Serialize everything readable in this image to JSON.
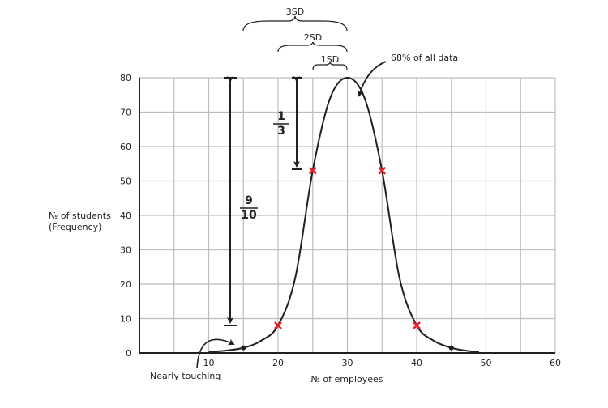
{
  "chart_data": {
    "type": "line",
    "xlabel": "№ of employees",
    "ylabel": [
      "№ of students",
      "(Frequency)"
    ],
    "xlim": [
      0,
      60
    ],
    "ylim": [
      0,
      80
    ],
    "x_ticks": [
      10,
      20,
      30,
      40,
      50,
      60
    ],
    "y_ticks": [
      0,
      10,
      20,
      30,
      40,
      50,
      60,
      70,
      80
    ],
    "grid": true,
    "curve": {
      "x": [
        10,
        12.5,
        15,
        17.5,
        20,
        22.5,
        25,
        27.5,
        30,
        32.5,
        35,
        37.5,
        40,
        42.5,
        45,
        47,
        49
      ],
      "y": [
        0.3,
        0.7,
        1.5,
        3.5,
        8,
        22,
        53,
        74,
        80,
        74,
        53,
        22,
        8,
        3.5,
        1.5,
        0.7,
        0.2
      ]
    },
    "marked_points": [
      {
        "x": 20,
        "y": 8
      },
      {
        "x": 25,
        "y": 53
      },
      {
        "x": 35,
        "y": 53
      },
      {
        "x": 40,
        "y": 8
      }
    ],
    "dot_points": [
      {
        "x": 15,
        "y": 1.5
      },
      {
        "x": 45,
        "y": 1.5
      }
    ],
    "marker_color": "#e8202a",
    "annotations": {
      "sd3": "3SD",
      "sd2": "2SD",
      "sd1": "1SD",
      "pct": "68% of all data",
      "nearly": "Nearly touching",
      "frac1_num": "1",
      "frac1_den": "3",
      "frac2_num": "9",
      "frac2_den": "10"
    }
  }
}
